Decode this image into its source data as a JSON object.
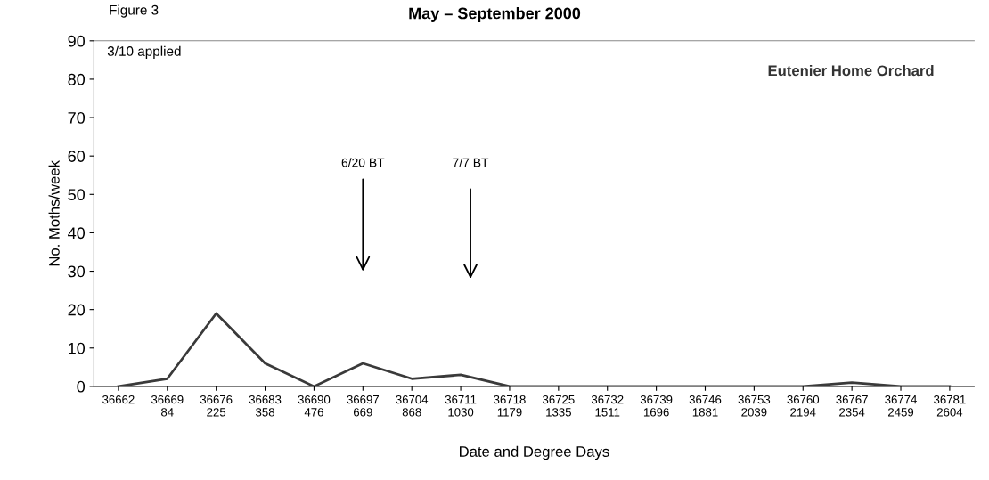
{
  "chart_data": {
    "type": "line",
    "title": "May – September 2000",
    "xlabel": "Date and Degree Days",
    "ylabel": "No. Moths/week",
    "categories": [
      "36662",
      "36669\n84",
      "36676\n225",
      "36683\n358",
      "36690\n476",
      "36697\n669",
      "36704\n868",
      "36711\n1030",
      "36718\n1179",
      "36725\n1335",
      "36732\n1511",
      "36739\n1696",
      "36746\n1881",
      "36753\n2039",
      "36760\n2194",
      "36767\n2354",
      "36774\n2459",
      "36781\n2604"
    ],
    "series": [
      {
        "color": "#3a3a3a",
        "values": [
          0,
          2,
          19,
          6,
          0,
          6,
          2,
          3,
          0,
          0,
          0,
          0,
          0,
          0,
          0,
          1,
          0,
          0
        ]
      }
    ],
    "ylim": [
      0,
      90
    ],
    "yticks": [
      0,
      10,
      20,
      30,
      40,
      50,
      60,
      70,
      80,
      90
    ],
    "grid": false,
    "legend": false,
    "marker": "none",
    "line_style": "solid",
    "annotations": [
      "Figure 3",
      "3/10 applied",
      "Eutenier Home Orchard",
      "6/20 BT",
      "7/7 BT"
    ]
  }
}
